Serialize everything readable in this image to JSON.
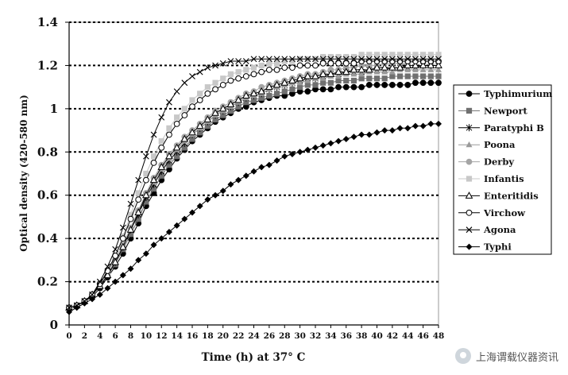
{
  "chart_data": {
    "type": "line",
    "xlabel": "Time (h) at 37° C",
    "ylabel": "Optical density (420-580 nm)",
    "xlim": [
      0,
      48
    ],
    "ylim": [
      0,
      1.4
    ],
    "x_ticks": [
      0,
      2,
      4,
      6,
      8,
      10,
      12,
      14,
      16,
      18,
      20,
      22,
      24,
      26,
      28,
      30,
      32,
      34,
      36,
      38,
      40,
      42,
      44,
      46,
      48
    ],
    "y_ticks": [
      0,
      0.2,
      0.4,
      0.6,
      0.8,
      1,
      1.2,
      1.4
    ],
    "y_tick_labels": [
      "0",
      "0.2",
      "0.4",
      "0.6",
      "0.8",
      "1",
      "1.2",
      "1.4"
    ],
    "grid": "horizontal dotted",
    "legend_position": "right",
    "x": [
      0,
      1,
      2,
      3,
      4,
      5,
      6,
      7,
      8,
      9,
      10,
      11,
      12,
      13,
      14,
      15,
      16,
      17,
      18,
      19,
      20,
      21,
      22,
      23,
      24,
      25,
      26,
      27,
      28,
      29,
      30,
      31,
      32,
      33,
      34,
      35,
      36,
      37,
      38,
      39,
      40,
      41,
      42,
      43,
      44,
      45,
      46,
      47,
      48
    ],
    "series": [
      {
        "name": "Typhimurium",
        "marker": "circle-filled",
        "color": "#000000",
        "values": [
          0.08,
          0.09,
          0.11,
          0.13,
          0.17,
          0.22,
          0.27,
          0.33,
          0.4,
          0.47,
          0.55,
          0.61,
          0.67,
          0.72,
          0.77,
          0.81,
          0.85,
          0.88,
          0.91,
          0.94,
          0.96,
          0.98,
          1.0,
          1.01,
          1.03,
          1.04,
          1.05,
          1.06,
          1.06,
          1.07,
          1.08,
          1.08,
          1.09,
          1.09,
          1.09,
          1.1,
          1.1,
          1.1,
          1.1,
          1.11,
          1.11,
          1.11,
          1.11,
          1.11,
          1.11,
          1.12,
          1.12,
          1.12,
          1.12
        ]
      },
      {
        "name": "Newport",
        "marker": "square-filled",
        "color": "#707070",
        "values": [
          0.08,
          0.09,
          0.11,
          0.14,
          0.18,
          0.23,
          0.28,
          0.35,
          0.42,
          0.49,
          0.57,
          0.63,
          0.69,
          0.74,
          0.78,
          0.82,
          0.86,
          0.89,
          0.92,
          0.95,
          0.97,
          0.99,
          1.01,
          1.03,
          1.04,
          1.05,
          1.06,
          1.07,
          1.08,
          1.09,
          1.1,
          1.11,
          1.11,
          1.12,
          1.12,
          1.13,
          1.13,
          1.13,
          1.14,
          1.14,
          1.14,
          1.14,
          1.15,
          1.15,
          1.15,
          1.15,
          1.15,
          1.15,
          1.15
        ]
      },
      {
        "name": "Paratyphi B",
        "marker": "asterisk",
        "color": "#000000",
        "values": [
          0.08,
          0.09,
          0.11,
          0.14,
          0.18,
          0.23,
          0.29,
          0.36,
          0.44,
          0.51,
          0.59,
          0.65,
          0.71,
          0.76,
          0.8,
          0.84,
          0.88,
          0.91,
          0.94,
          0.97,
          0.99,
          1.01,
          1.03,
          1.05,
          1.06,
          1.07,
          1.09,
          1.1,
          1.11,
          1.12,
          1.13,
          1.14,
          1.14,
          1.15,
          1.16,
          1.16,
          1.17,
          1.17,
          1.17,
          1.18,
          1.18,
          1.18,
          1.19,
          1.19,
          1.19,
          1.19,
          1.2,
          1.2,
          1.2
        ]
      },
      {
        "name": "Poona",
        "marker": "triangle-filled",
        "color": "#9a9a9a",
        "values": [
          0.08,
          0.09,
          0.11,
          0.14,
          0.18,
          0.23,
          0.29,
          0.36,
          0.44,
          0.52,
          0.6,
          0.66,
          0.72,
          0.77,
          0.81,
          0.85,
          0.88,
          0.91,
          0.94,
          0.97,
          0.99,
          1.01,
          1.03,
          1.05,
          1.06,
          1.07,
          1.09,
          1.1,
          1.11,
          1.12,
          1.12,
          1.13,
          1.14,
          1.14,
          1.15,
          1.15,
          1.16,
          1.16,
          1.16,
          1.17,
          1.17,
          1.17,
          1.17,
          1.18,
          1.18,
          1.18,
          1.18,
          1.18,
          1.18
        ]
      },
      {
        "name": "Derby",
        "marker": "circle-filled",
        "color": "#a5a5a5",
        "values": [
          0.08,
          0.09,
          0.11,
          0.14,
          0.19,
          0.24,
          0.3,
          0.37,
          0.45,
          0.53,
          0.61,
          0.68,
          0.74,
          0.79,
          0.83,
          0.87,
          0.9,
          0.93,
          0.96,
          0.99,
          1.01,
          1.03,
          1.05,
          1.07,
          1.08,
          1.1,
          1.11,
          1.12,
          1.13,
          1.14,
          1.15,
          1.16,
          1.16,
          1.17,
          1.18,
          1.18,
          1.19,
          1.19,
          1.2,
          1.2,
          1.2,
          1.21,
          1.21,
          1.21,
          1.21,
          1.22,
          1.22,
          1.22,
          1.22
        ]
      },
      {
        "name": "Infantis",
        "marker": "square-filled",
        "color": "#c8c8c8",
        "values": [
          0.08,
          0.09,
          0.11,
          0.14,
          0.19,
          0.25,
          0.32,
          0.41,
          0.51,
          0.61,
          0.7,
          0.78,
          0.85,
          0.91,
          0.96,
          1.0,
          1.04,
          1.07,
          1.1,
          1.12,
          1.14,
          1.16,
          1.17,
          1.18,
          1.19,
          1.2,
          1.21,
          1.21,
          1.22,
          1.22,
          1.23,
          1.23,
          1.23,
          1.24,
          1.24,
          1.24,
          1.24,
          1.24,
          1.25,
          1.25,
          1.25,
          1.25,
          1.25,
          1.25,
          1.25,
          1.25,
          1.25,
          1.25,
          1.25
        ]
      },
      {
        "name": "Enteritidis",
        "marker": "triangle-open",
        "color": "#000000",
        "values": [
          0.08,
          0.09,
          0.11,
          0.14,
          0.18,
          0.23,
          0.29,
          0.36,
          0.44,
          0.52,
          0.6,
          0.67,
          0.73,
          0.78,
          0.82,
          0.86,
          0.89,
          0.92,
          0.95,
          0.98,
          1.0,
          1.02,
          1.04,
          1.06,
          1.07,
          1.08,
          1.1,
          1.11,
          1.12,
          1.13,
          1.14,
          1.15,
          1.15,
          1.16,
          1.16,
          1.17,
          1.17,
          1.18,
          1.18,
          1.18,
          1.19,
          1.19,
          1.19,
          1.19,
          1.2,
          1.2,
          1.2,
          1.2,
          1.2
        ]
      },
      {
        "name": "Virchow",
        "marker": "circle-open",
        "color": "#000000",
        "values": [
          0.08,
          0.09,
          0.11,
          0.14,
          0.19,
          0.25,
          0.32,
          0.4,
          0.49,
          0.58,
          0.67,
          0.75,
          0.82,
          0.88,
          0.93,
          0.97,
          1.01,
          1.04,
          1.07,
          1.09,
          1.11,
          1.13,
          1.14,
          1.15,
          1.16,
          1.17,
          1.18,
          1.18,
          1.19,
          1.19,
          1.2,
          1.2,
          1.2,
          1.21,
          1.21,
          1.21,
          1.21,
          1.21,
          1.22,
          1.22,
          1.22,
          1.22,
          1.22,
          1.22,
          1.22,
          1.22,
          1.22,
          1.22,
          1.22
        ]
      },
      {
        "name": "Agona",
        "marker": "x",
        "color": "#000000",
        "values": [
          0.08,
          0.09,
          0.11,
          0.14,
          0.2,
          0.27,
          0.35,
          0.45,
          0.56,
          0.67,
          0.78,
          0.88,
          0.96,
          1.03,
          1.08,
          1.12,
          1.15,
          1.17,
          1.19,
          1.2,
          1.21,
          1.22,
          1.22,
          1.22,
          1.23,
          1.23,
          1.23,
          1.23,
          1.23,
          1.23,
          1.23,
          1.23,
          1.23,
          1.23,
          1.23,
          1.23,
          1.23,
          1.23,
          1.23,
          1.23,
          1.23,
          1.23,
          1.23,
          1.23,
          1.23,
          1.23,
          1.23,
          1.23,
          1.23
        ]
      },
      {
        "name": "Typhi",
        "marker": "diamond-filled",
        "color": "#000000",
        "values": [
          0.06,
          0.08,
          0.1,
          0.12,
          0.14,
          0.17,
          0.2,
          0.23,
          0.26,
          0.3,
          0.33,
          0.37,
          0.4,
          0.43,
          0.46,
          0.49,
          0.52,
          0.55,
          0.58,
          0.6,
          0.62,
          0.65,
          0.67,
          0.69,
          0.71,
          0.73,
          0.74,
          0.76,
          0.78,
          0.79,
          0.8,
          0.81,
          0.82,
          0.83,
          0.84,
          0.85,
          0.86,
          0.87,
          0.88,
          0.88,
          0.89,
          0.9,
          0.9,
          0.91,
          0.91,
          0.92,
          0.92,
          0.93,
          0.93
        ]
      }
    ]
  },
  "watermark": {
    "text": "上海谓载仪器资讯",
    "icon": "wechat-icon"
  }
}
